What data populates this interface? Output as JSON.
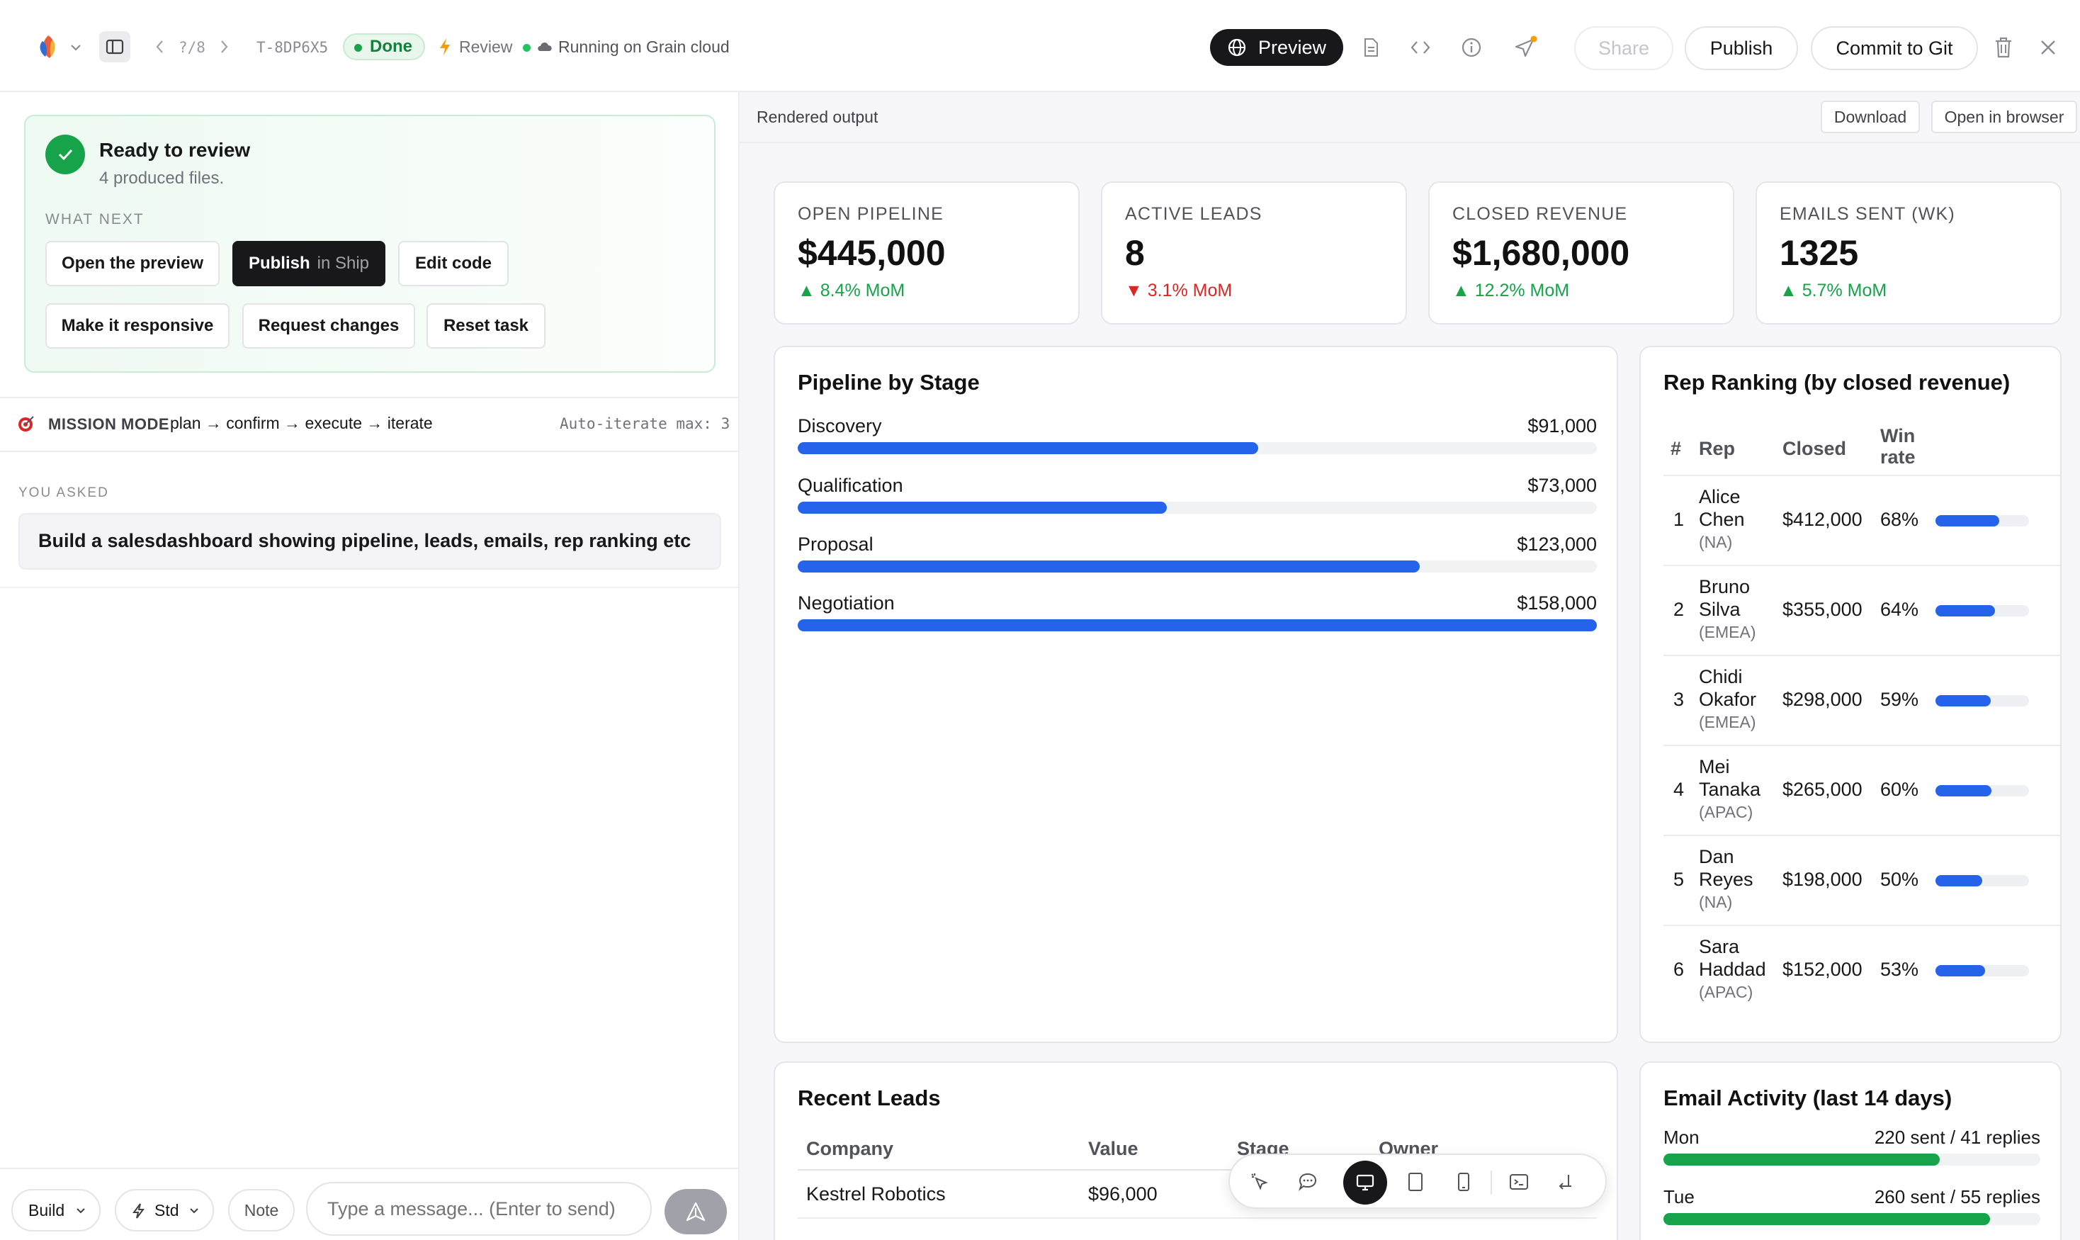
{
  "topbar": {
    "nav_counter": "?/8",
    "task_id": "T-8DP6X5",
    "status": "Done",
    "review_label": "Review",
    "running_label": "Running on Grain cloud",
    "preview_label": "Preview",
    "share_label": "Share",
    "publish_label": "Publish",
    "commit_label": "Commit to Git"
  },
  "left": {
    "ready_title": "Ready to review",
    "ready_sub": "4 produced files.",
    "what_next": "WHAT NEXT",
    "actions": {
      "open_preview": "Open the preview",
      "publish": "Publish",
      "publish_sub": "in Ship",
      "edit_code": "Edit code",
      "responsive": "Make it responsive",
      "request_changes": "Request changes",
      "reset_task": "Reset task"
    },
    "mission_label": "MISSION MODE",
    "mission_flow": "plan → confirm → execute → iterate",
    "auto_iterate": "Auto-iterate max: 3",
    "you_asked": "YOU ASKED",
    "prompt": "Build a salesdashboard showing pipeline, leads, emails, rep ranking etc",
    "composer": {
      "mode": "Build",
      "tier": "Std",
      "note": "Note",
      "placeholder": "Type a message... (Enter to send)"
    }
  },
  "right": {
    "header_title": "Rendered output",
    "download": "Download",
    "open_browser": "Open in browser"
  },
  "dashboard": {
    "kpis": [
      {
        "label": "OPEN PIPELINE",
        "value": "$445,000",
        "delta": "8.4% MoM",
        "dir": "up"
      },
      {
        "label": "ACTIVE LEADS",
        "value": "8",
        "delta": "3.1% MoM",
        "dir": "down"
      },
      {
        "label": "CLOSED REVENUE",
        "value": "$1,680,000",
        "delta": "12.2% MoM",
        "dir": "up"
      },
      {
        "label": "EMAILS SENT (WK)",
        "value": "1325",
        "delta": "5.7% MoM",
        "dir": "up"
      }
    ],
    "pipeline": {
      "title": "Pipeline by Stage",
      "stages": [
        {
          "name": "Discovery",
          "value": "$91,000",
          "amount": 91000
        },
        {
          "name": "Qualification",
          "value": "$73,000",
          "amount": 73000
        },
        {
          "name": "Proposal",
          "value": "$123,000",
          "amount": 123000
        },
        {
          "name": "Negotiation",
          "value": "$158,000",
          "amount": 158000
        }
      ]
    },
    "ranking": {
      "title": "Rep Ranking (by closed revenue)",
      "headers": {
        "num": "#",
        "rep": "Rep",
        "closed": "Closed",
        "win1": "Win",
        "win2": "rate"
      },
      "rows": [
        {
          "rank": "1",
          "first": "Alice",
          "last": "Chen",
          "region": "(NA)",
          "closed": "$412,000",
          "win": "68%",
          "win_pct": 68
        },
        {
          "rank": "2",
          "first": "Bruno",
          "last": "Silva",
          "region": "(EMEA)",
          "closed": "$355,000",
          "win": "64%",
          "win_pct": 64
        },
        {
          "rank": "3",
          "first": "Chidi",
          "last": "Okafor",
          "region": "(EMEA)",
          "closed": "$298,000",
          "win": "59%",
          "win_pct": 59
        },
        {
          "rank": "4",
          "first": "Mei",
          "last": "Tanaka",
          "region": "(APAC)",
          "closed": "$265,000",
          "win": "60%",
          "win_pct": 60
        },
        {
          "rank": "5",
          "first": "Dan",
          "last": "Reyes",
          "region": "(NA)",
          "closed": "$198,000",
          "win": "50%",
          "win_pct": 50
        },
        {
          "rank": "6",
          "first": "Sara",
          "last": "Haddad",
          "region": "(APAC)",
          "closed": "$152,000",
          "win": "53%",
          "win_pct": 53
        }
      ]
    },
    "leads": {
      "title": "Recent Leads",
      "headers": {
        "company": "Company",
        "value": "Value",
        "stage": "Stage",
        "owner": "Owner"
      },
      "rows": [
        {
          "company": "Kestrel Robotics",
          "value": "$96,000"
        }
      ]
    },
    "email": {
      "title": "Email Activity (last 14 days)",
      "days": [
        {
          "day": "Mon",
          "text": "220 sent / 41 replies",
          "sent": 220
        },
        {
          "day": "Tue",
          "text": "260 sent / 55 replies",
          "sent": 260
        }
      ]
    }
  },
  "colors": {
    "accent": "#2563eb",
    "success": "#16a34a",
    "danger": "#dc2626",
    "dark": "#18181b"
  }
}
